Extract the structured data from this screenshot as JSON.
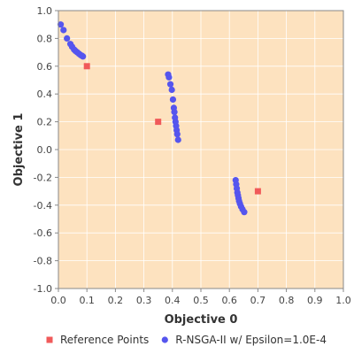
{
  "chart_data": {
    "type": "scatter",
    "title": "",
    "xlabel": "Objective 0",
    "ylabel": "Objective 1",
    "xlim": [
      0.0,
      1.0
    ],
    "ylim": [
      -1.0,
      1.0
    ],
    "x_ticks": [
      "0.0",
      "0.1",
      "0.2",
      "0.3",
      "0.4",
      "0.5",
      "0.6",
      "0.7",
      "0.8",
      "0.9",
      "1.0"
    ],
    "y_ticks": [
      "-1.0",
      "-0.8",
      "-0.6",
      "-0.4",
      "-0.2",
      "0.0",
      "0.2",
      "0.4",
      "0.6",
      "0.8",
      "1.0"
    ],
    "grid": true,
    "legend_position": "bottom",
    "background_color": "#fde2bf",
    "series": [
      {
        "name": "Reference Points",
        "marker": "square",
        "color": "#f05a5a",
        "x": [
          0.1,
          0.35,
          0.7
        ],
        "y": [
          0.6,
          0.2,
          -0.3
        ]
      },
      {
        "name": "R-NSGA-II w/ Epsilon=1.0E-4",
        "marker": "circle",
        "color": "#5555ee",
        "x": [
          0.008,
          0.018,
          0.03,
          0.042,
          0.048,
          0.055,
          0.06,
          0.066,
          0.072,
          0.078,
          0.083,
          0.086,
          0.385,
          0.388,
          0.393,
          0.398,
          0.402,
          0.405,
          0.407,
          0.409,
          0.411,
          0.413,
          0.415,
          0.417,
          0.42,
          0.622,
          0.624,
          0.626,
          0.628,
          0.63,
          0.632,
          0.634,
          0.637,
          0.641,
          0.646,
          0.652
        ],
        "y": [
          0.9,
          0.86,
          0.8,
          0.76,
          0.74,
          0.72,
          0.71,
          0.7,
          0.69,
          0.68,
          0.675,
          0.67,
          0.54,
          0.52,
          0.47,
          0.43,
          0.36,
          0.3,
          0.27,
          0.23,
          0.2,
          0.17,
          0.14,
          0.11,
          0.07,
          -0.22,
          -0.25,
          -0.28,
          -0.31,
          -0.33,
          -0.35,
          -0.37,
          -0.39,
          -0.41,
          -0.43,
          -0.45
        ]
      }
    ]
  }
}
